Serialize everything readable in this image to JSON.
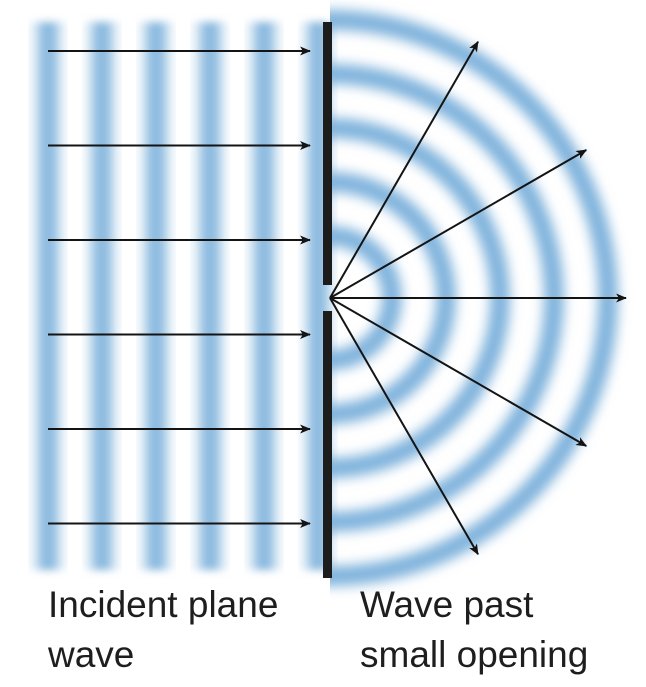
{
  "captions": {
    "incident": {
      "line1": "Incident plane",
      "line2": "wave"
    },
    "diffracted": {
      "line1": "Wave past",
      "line2": "small opening"
    }
  },
  "colors": {
    "wave": "#7fb2dc",
    "line": "#141414",
    "barrier": "#1c1c1c"
  },
  "diagram": {
    "incident_arrow_count": 6,
    "plane_wavefront_count": 6,
    "circular_wavefront_count": 5,
    "diffracted_arrow_angles_deg": [
      -60,
      -30,
      0,
      30,
      60
    ]
  }
}
